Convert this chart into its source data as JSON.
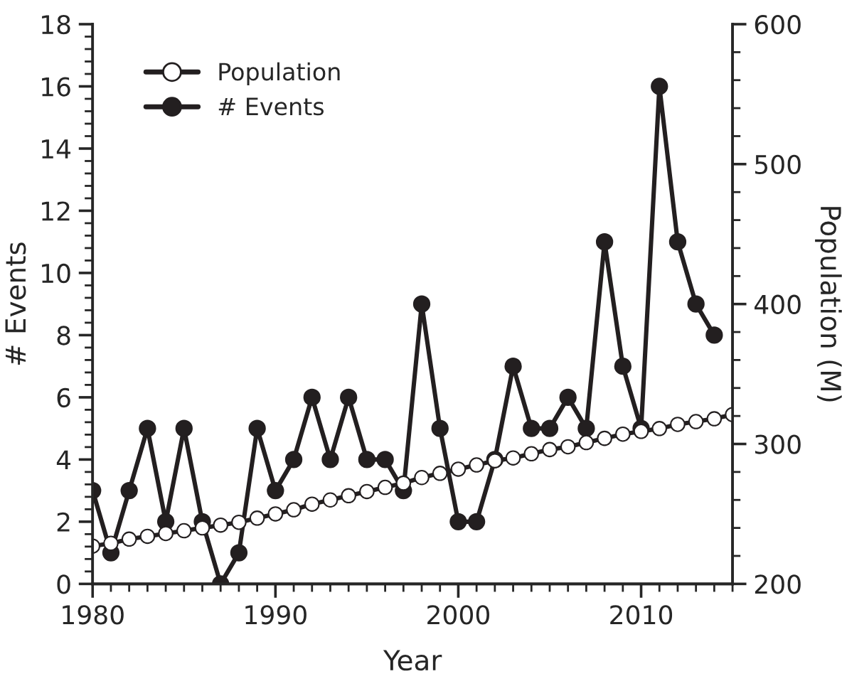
{
  "chart_data": {
    "type": "line",
    "xlabel": "Year",
    "ylabel": "# Events",
    "y2label": "Population (M)",
    "xlim": [
      1980,
      2015
    ],
    "xticks": [
      1980,
      1990,
      2000,
      2010
    ],
    "ylim": [
      0,
      18
    ],
    "yticks": [
      0,
      2,
      4,
      6,
      8,
      10,
      12,
      14,
      16,
      18
    ],
    "y2lim": [
      200,
      600
    ],
    "y2ticks": [
      200,
      300,
      400,
      500,
      600
    ],
    "legend": "top left",
    "grid": false,
    "series": [
      {
        "name": "Population",
        "axis": "y2",
        "color": "#231f20",
        "marker": "circle",
        "x": [
          1980,
          1981,
          1982,
          1983,
          1984,
          1985,
          1986,
          1987,
          1988,
          1989,
          1990,
          1991,
          1992,
          1993,
          1994,
          1995,
          1996,
          1997,
          1998,
          1999,
          2000,
          2001,
          2002,
          2003,
          2004,
          2005,
          2006,
          2007,
          2008,
          2009,
          2010,
          2011,
          2012,
          2013,
          2014,
          2015
        ],
        "values": [
          227,
          229,
          232,
          234,
          236,
          238,
          240,
          242,
          244,
          247,
          250,
          253,
          257,
          260,
          263,
          266,
          269,
          272,
          276,
          279,
          282,
          285,
          288,
          290,
          293,
          296,
          298,
          301,
          304,
          307,
          309,
          311,
          314,
          316,
          318,
          321
        ]
      },
      {
        "name": "# Events",
        "axis": "y",
        "color": "#231f20",
        "marker": "circle",
        "x": [
          1980,
          1981,
          1982,
          1983,
          1984,
          1985,
          1986,
          1987,
          1988,
          1989,
          1990,
          1991,
          1992,
          1993,
          1994,
          1995,
          1996,
          1997,
          1998,
          1999,
          2000,
          2001,
          2002,
          2003,
          2004,
          2005,
          2006,
          2007,
          2008,
          2009,
          2010,
          2011,
          2012,
          2013,
          2014
        ],
        "values": [
          3,
          1,
          3,
          5,
          2,
          5,
          2,
          0,
          1,
          5,
          3,
          4,
          6,
          4,
          6,
          4,
          4,
          3,
          9,
          5,
          2,
          2,
          4,
          7,
          5,
          5,
          6,
          5,
          11,
          7,
          5,
          16,
          11,
          9,
          8
        ]
      }
    ]
  }
}
